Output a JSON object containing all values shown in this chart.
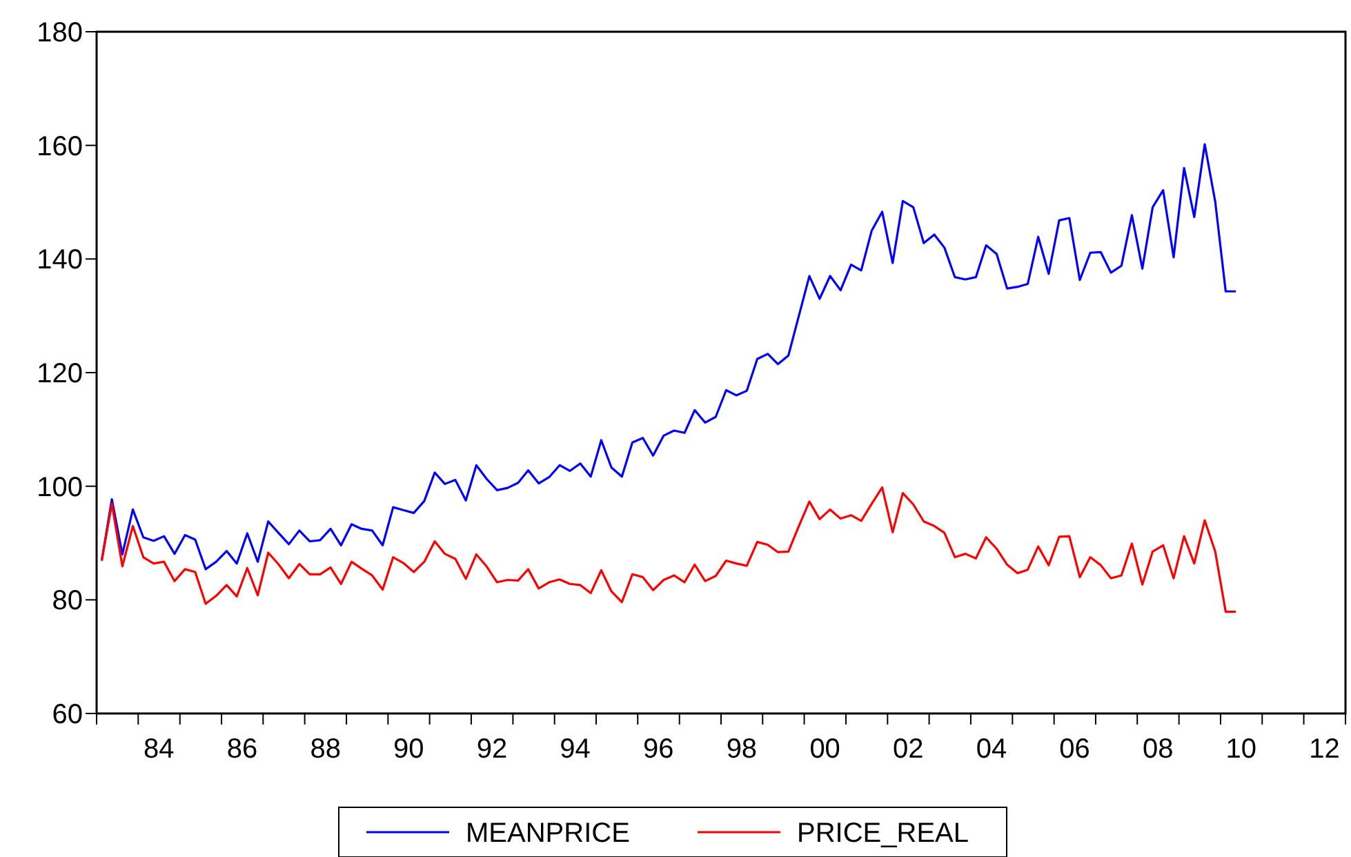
{
  "chart_data": {
    "type": "line",
    "x": [
      "1983-02-15",
      "1983-05-15",
      "1983-08-15",
      "1983-11-15",
      "1984-02-15",
      "1984-05-15",
      "1984-08-15",
      "1984-11-15",
      "1985-02-15",
      "1985-05-15",
      "1985-08-15",
      "1985-11-15",
      "1986-02-15",
      "1986-05-15",
      "1986-08-15",
      "1986-11-15",
      "1987-02-15",
      "1987-05-15",
      "1987-08-15",
      "1987-11-15",
      "1988-02-15",
      "1988-05-15",
      "1988-08-15",
      "1988-11-15",
      "1989-02-15",
      "1989-05-15",
      "1989-08-15",
      "1989-11-15",
      "1990-02-15",
      "1990-05-15",
      "1990-08-15",
      "1990-11-15",
      "1991-02-15",
      "1991-05-15",
      "1991-08-15",
      "1991-11-15",
      "1992-02-15",
      "1992-05-15",
      "1992-08-15",
      "1992-11-15",
      "1993-02-15",
      "1993-05-15",
      "1993-08-15",
      "1993-11-15",
      "1994-02-15",
      "1994-05-15",
      "1994-08-15",
      "1994-11-15",
      "1995-02-15",
      "1995-05-15",
      "1995-08-15",
      "1995-11-15",
      "1996-02-15",
      "1996-05-15",
      "1996-08-15",
      "1996-11-15",
      "1997-02-15",
      "1997-05-15",
      "1997-08-15",
      "1997-11-15",
      "1998-02-15",
      "1998-05-15",
      "1998-08-15",
      "1998-11-15",
      "1999-02-15",
      "1999-05-15",
      "1999-08-15",
      "1999-11-15",
      "2000-02-15",
      "2000-05-15",
      "2000-08-15",
      "2000-11-15",
      "2001-02-15",
      "2001-05-15",
      "2001-08-15",
      "2001-11-15",
      "2002-02-15",
      "2002-05-15",
      "2002-08-15",
      "2002-11-15",
      "2003-02-15",
      "2003-05-15",
      "2003-08-15",
      "2003-11-15",
      "2004-02-15",
      "2004-05-15",
      "2004-08-15",
      "2004-11-15",
      "2005-02-15",
      "2005-05-15",
      "2005-08-15",
      "2005-11-15",
      "2006-02-15",
      "2006-05-15",
      "2006-08-15",
      "2006-11-15",
      "2007-02-15",
      "2007-05-15",
      "2007-08-15",
      "2007-11-15",
      "2008-02-15",
      "2008-05-15",
      "2008-08-15",
      "2008-11-15",
      "2009-02-15",
      "2009-05-15",
      "2009-08-15",
      "2009-11-15",
      "2010-02-15",
      "2010-05-15"
    ],
    "series": [
      {
        "name": "MEANPRICE",
        "color": "#0000ff",
        "values": [
          86.9,
          97.7,
          88.0,
          95.9,
          91.0,
          90.4,
          91.2,
          88.1,
          91.4,
          90.6,
          85.4,
          86.7,
          88.6,
          86.4,
          91.7,
          86.7,
          93.8,
          91.8,
          89.8,
          92.2,
          90.3,
          90.5,
          92.5,
          89.6,
          93.3,
          92.5,
          92.2,
          89.6,
          96.3,
          95.8,
          95.3,
          97.4,
          102.4,
          100.4,
          101.1,
          97.5,
          103.7,
          101.3,
          99.3,
          99.7,
          100.6,
          102.8,
          100.5,
          101.6,
          103.7,
          102.7,
          104.0,
          101.7,
          108.1,
          103.3,
          101.7,
          107.7,
          108.5,
          105.4,
          108.9,
          109.8,
          109.4,
          113.4,
          111.2,
          112.2,
          116.9,
          116.0,
          116.8,
          122.4,
          123.3,
          121.5,
          123.0,
          130.0,
          137.0,
          133.0,
          137.0,
          134.5,
          139.0,
          138.0,
          145.0,
          148.3,
          139.3,
          150.2,
          149.1,
          142.8,
          144.3,
          142.0,
          136.8,
          136.4,
          136.8,
          142.4,
          140.9,
          134.8,
          135.1,
          135.6,
          143.9,
          137.4,
          146.8,
          147.2,
          136.3,
          141.1,
          141.2,
          137.6,
          138.8,
          147.7,
          138.3,
          149.1,
          152.1,
          140.3,
          156.0,
          147.4,
          160.2,
          150.1,
          134.3,
          134.3
        ]
      },
      {
        "name": "PRICE_REAL",
        "color": "#ff0000",
        "values": [
          86.9,
          96.9,
          85.9,
          93.0,
          87.5,
          86.4,
          86.7,
          83.3,
          85.4,
          84.9,
          79.3,
          80.7,
          82.6,
          80.6,
          85.6,
          80.8,
          88.3,
          86.3,
          83.8,
          86.3,
          84.5,
          84.5,
          85.7,
          82.8,
          86.7,
          85.5,
          84.3,
          81.8,
          87.5,
          86.5,
          84.9,
          86.7,
          90.3,
          88.1,
          87.2,
          83.7,
          88.0,
          85.9,
          83.1,
          83.5,
          83.4,
          85.4,
          82.0,
          83.1,
          83.6,
          82.8,
          82.6,
          81.2,
          85.2,
          81.5,
          79.6,
          84.5,
          84.0,
          81.7,
          83.5,
          84.3,
          83.1,
          86.2,
          83.3,
          84.2,
          86.9,
          86.4,
          86.0,
          90.2,
          89.7,
          88.4,
          88.5,
          93.0,
          97.3,
          94.2,
          95.9,
          94.3,
          94.9,
          93.9,
          96.9,
          99.8,
          91.9,
          98.8,
          96.8,
          93.8,
          93.0,
          91.8,
          87.5,
          88.1,
          87.3,
          91.0,
          89.0,
          86.2,
          84.7,
          85.3,
          89.4,
          86.1,
          91.1,
          91.2,
          84.0,
          87.5,
          86.1,
          83.8,
          84.3,
          89.9,
          82.7,
          88.5,
          89.6,
          83.8,
          91.2,
          86.4,
          94.0,
          88.5,
          77.9,
          77.9
        ]
      }
    ],
    "xlim": [
      "1983",
      "2013"
    ],
    "xticks": [
      {
        "value": "1983",
        "label": null
      },
      {
        "value": "1984",
        "label": null
      },
      {
        "value": "1985",
        "label": null
      },
      {
        "value": "1986",
        "label": null
      },
      {
        "value": "1987",
        "label": null
      },
      {
        "value": "1988",
        "label": null
      },
      {
        "value": "1989",
        "label": null
      },
      {
        "value": "1990",
        "label": null
      },
      {
        "value": "1991",
        "label": null
      },
      {
        "value": "1992",
        "label": null
      },
      {
        "value": "1993",
        "label": null
      },
      {
        "value": "1994",
        "label": null
      },
      {
        "value": "1995",
        "label": null
      },
      {
        "value": "1996",
        "label": null
      },
      {
        "value": "1997",
        "label": null
      },
      {
        "value": "1998",
        "label": null
      },
      {
        "value": "1999",
        "label": null
      },
      {
        "value": "2000",
        "label": null
      },
      {
        "value": "2001",
        "label": null
      },
      {
        "value": "2002",
        "label": null
      },
      {
        "value": "2003",
        "label": null
      },
      {
        "value": "2004",
        "label": null
      },
      {
        "value": "2005",
        "label": null
      },
      {
        "value": "2006",
        "label": null
      },
      {
        "value": "2007",
        "label": null
      },
      {
        "value": "2008",
        "label": null
      },
      {
        "value": "2009",
        "label": null
      },
      {
        "value": "2010",
        "label": null
      },
      {
        "value": "2011",
        "label": null
      },
      {
        "value": "2012",
        "label": null
      },
      {
        "value": "2013",
        "label": null
      },
      {
        "value": "1984-07-01",
        "label": "84"
      },
      {
        "value": "1986-07-01",
        "label": "86"
      },
      {
        "value": "1988-07-01",
        "label": "88"
      },
      {
        "value": "1990-07-01",
        "label": "90"
      },
      {
        "value": "1992-07-01",
        "label": "92"
      },
      {
        "value": "1994-07-01",
        "label": "94"
      },
      {
        "value": "1996-07-01",
        "label": "96"
      },
      {
        "value": "1998-07-01",
        "label": "98"
      },
      {
        "value": "2000-07-01",
        "label": "00"
      },
      {
        "value": "2002-07-01",
        "label": "02"
      },
      {
        "value": "2004-07-01",
        "label": "04"
      },
      {
        "value": "2006-07-01",
        "label": "06"
      },
      {
        "value": "2008-07-01",
        "label": "08"
      },
      {
        "value": "2010-07-01",
        "label": "10"
      },
      {
        "value": "2012-07-01",
        "label": "12"
      }
    ],
    "ylim": [
      60,
      180
    ],
    "yticks": [
      60,
      80,
      100,
      120,
      140,
      160,
      180
    ],
    "grid": false,
    "legend": "bottom",
    "marker": "none",
    "line_style": "solid"
  }
}
